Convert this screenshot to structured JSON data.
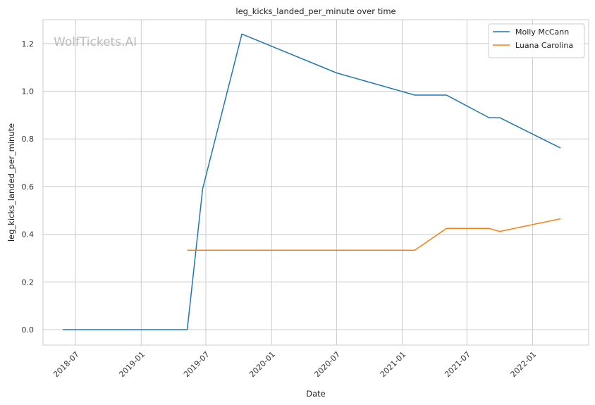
{
  "chart_data": {
    "type": "line",
    "title": "leg_kicks_landed_per_minute over time",
    "xlabel": "Date",
    "ylabel": "leg_kicks_landed_per_minute",
    "watermark": "WolfTickets.AI",
    "x_ticks": [
      "2018-07",
      "2019-01",
      "2019-07",
      "2020-01",
      "2020-07",
      "2021-01",
      "2021-07",
      "2022-01"
    ],
    "y_ticks": [
      "0.0",
      "0.2",
      "0.4",
      "0.6",
      "0.8",
      "1.0",
      "1.2"
    ],
    "xlim": [
      "2018-04-01",
      "2022-06-07"
    ],
    "ylim": [
      -0.065,
      1.3
    ],
    "grid": true,
    "legend_position": "top-right",
    "series": [
      {
        "name": "Molly McCann",
        "color": "#1f77b4",
        "x": [
          "2018-05-26",
          "2019-05-10",
          "2019-06-22",
          "2019-10-10",
          "2020-07-01",
          "2021-02-05",
          "2021-05-05",
          "2021-09-01",
          "2021-10-01",
          "2022-03-20"
        ],
        "y": [
          0.0,
          0.0,
          0.59,
          1.24,
          1.077,
          0.984,
          0.984,
          0.889,
          0.889,
          0.762
        ]
      },
      {
        "name": "Luana Carolina",
        "color": "#ff7f0e",
        "x": [
          "2019-05-10",
          "2021-02-05",
          "2021-05-05",
          "2021-09-01",
          "2021-10-01",
          "2022-03-20"
        ],
        "y": [
          0.333,
          0.333,
          0.425,
          0.425,
          0.412,
          0.465
        ]
      }
    ]
  }
}
